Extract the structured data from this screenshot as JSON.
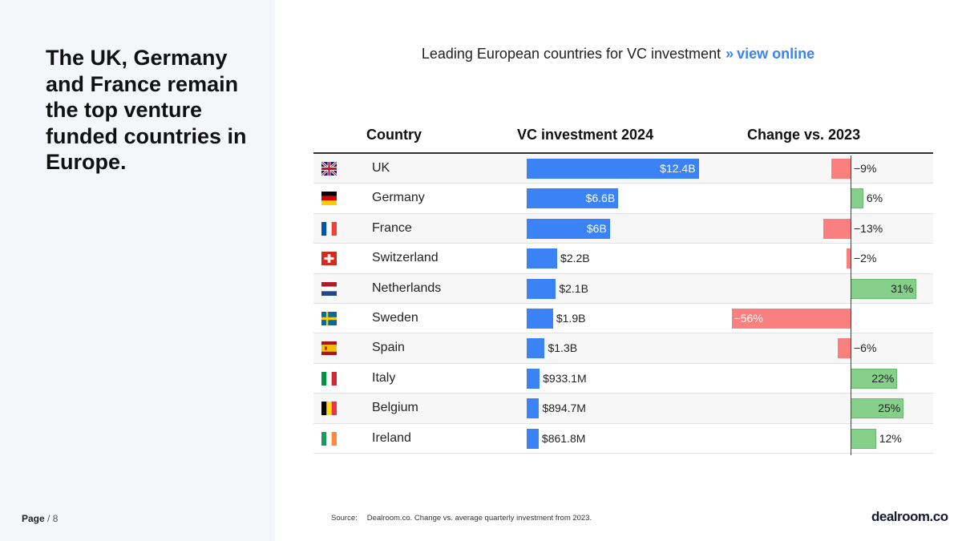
{
  "headline": "The UK, Germany and France remain the top venture funded countries in Europe.",
  "page": {
    "label": "Page",
    "number": "/ 8"
  },
  "chart_title": {
    "text": "Leading European countries for VC investment",
    "arrows": "»",
    "link": "view online"
  },
  "columns": {
    "country": "Country",
    "vc": "VC investment 2024",
    "change": "Change vs. 2023"
  },
  "source": {
    "label": "Source:",
    "text": "Dealroom.co. Change vs. average quarterly investment from 2023."
  },
  "logo": "dealroom.co",
  "colors": {
    "vc_bar": "#3b82f6",
    "positive": "#86cf8a",
    "negative": "#fa8080",
    "accent": "#3b82f6"
  },
  "chart_data": {
    "type": "bar",
    "categories": [
      "UK",
      "Germany",
      "France",
      "Switzerland",
      "Netherlands",
      "Sweden",
      "Spain",
      "Italy",
      "Belgium",
      "Ireland"
    ],
    "flags": [
      "flag-uk-icon",
      "flag-germany-icon",
      "flag-france-icon",
      "flag-switzerland-icon",
      "flag-netherlands-icon",
      "flag-sweden-icon",
      "flag-spain-icon",
      "flag-italy-icon",
      "flag-belgium-icon",
      "flag-ireland-icon"
    ],
    "series": [
      {
        "values": [
          12.4,
          6.6,
          6.0,
          2.2,
          2.1,
          1.9,
          1.3,
          0.9331,
          0.8947,
          0.8618
        ],
        "labels": [
          "$12.4B",
          "$6.6B",
          "$6B",
          "$2.2B",
          "$2.1B",
          "$1.9B",
          "$1.3B",
          "$933.1M",
          "$894.7M",
          "$861.8M"
        ]
      },
      {
        "values": [
          -9,
          6,
          -13,
          -2,
          31,
          -56,
          -6,
          22,
          25,
          12
        ],
        "labels": [
          "−9%",
          "6%",
          "−13%",
          "−2%",
          "31%",
          "−56%",
          "−6%",
          "22%",
          "25%",
          "12%"
        ]
      }
    ]
  }
}
